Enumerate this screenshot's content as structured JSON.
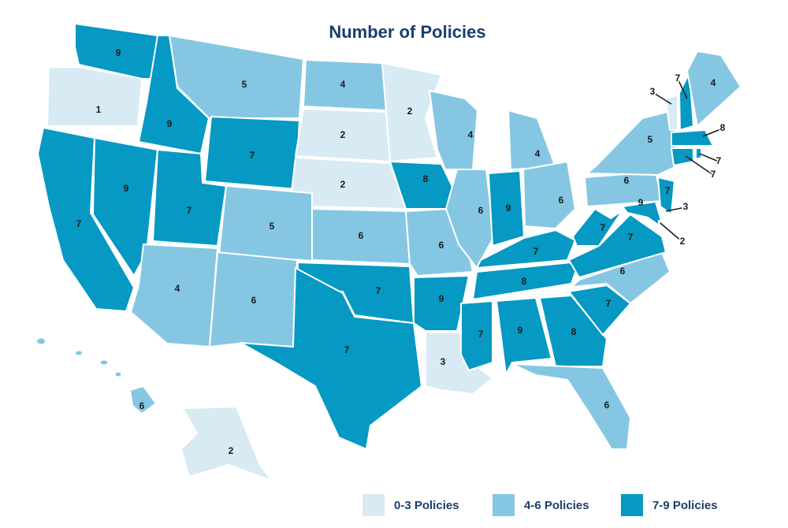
{
  "title": "Number of Policies",
  "values": [
    9,
    1,
    7,
    9,
    9,
    5,
    7,
    7,
    5,
    4,
    6,
    4,
    2,
    2,
    6,
    7,
    7,
    2,
    8,
    6,
    9,
    3,
    4,
    6,
    4,
    9,
    6,
    7,
    8,
    7,
    9,
    8,
    6,
    7,
    6,
    7,
    7,
    9,
    3,
    2,
    6,
    7,
    5,
    3,
    7,
    4,
    8,
    7,
    7,
    2,
    6
  ],
  "legend": [
    {
      "label": "0-3 Policies",
      "color": "#d8eaf4",
      "range": [
        0,
        3
      ]
    },
    {
      "label": "4-6 Policies",
      "color": "#85c7e3",
      "range": [
        4,
        6
      ]
    },
    {
      "label": "7-9 Policies",
      "color": "#0599c3",
      "range": [
        7,
        9
      ]
    }
  ]
}
